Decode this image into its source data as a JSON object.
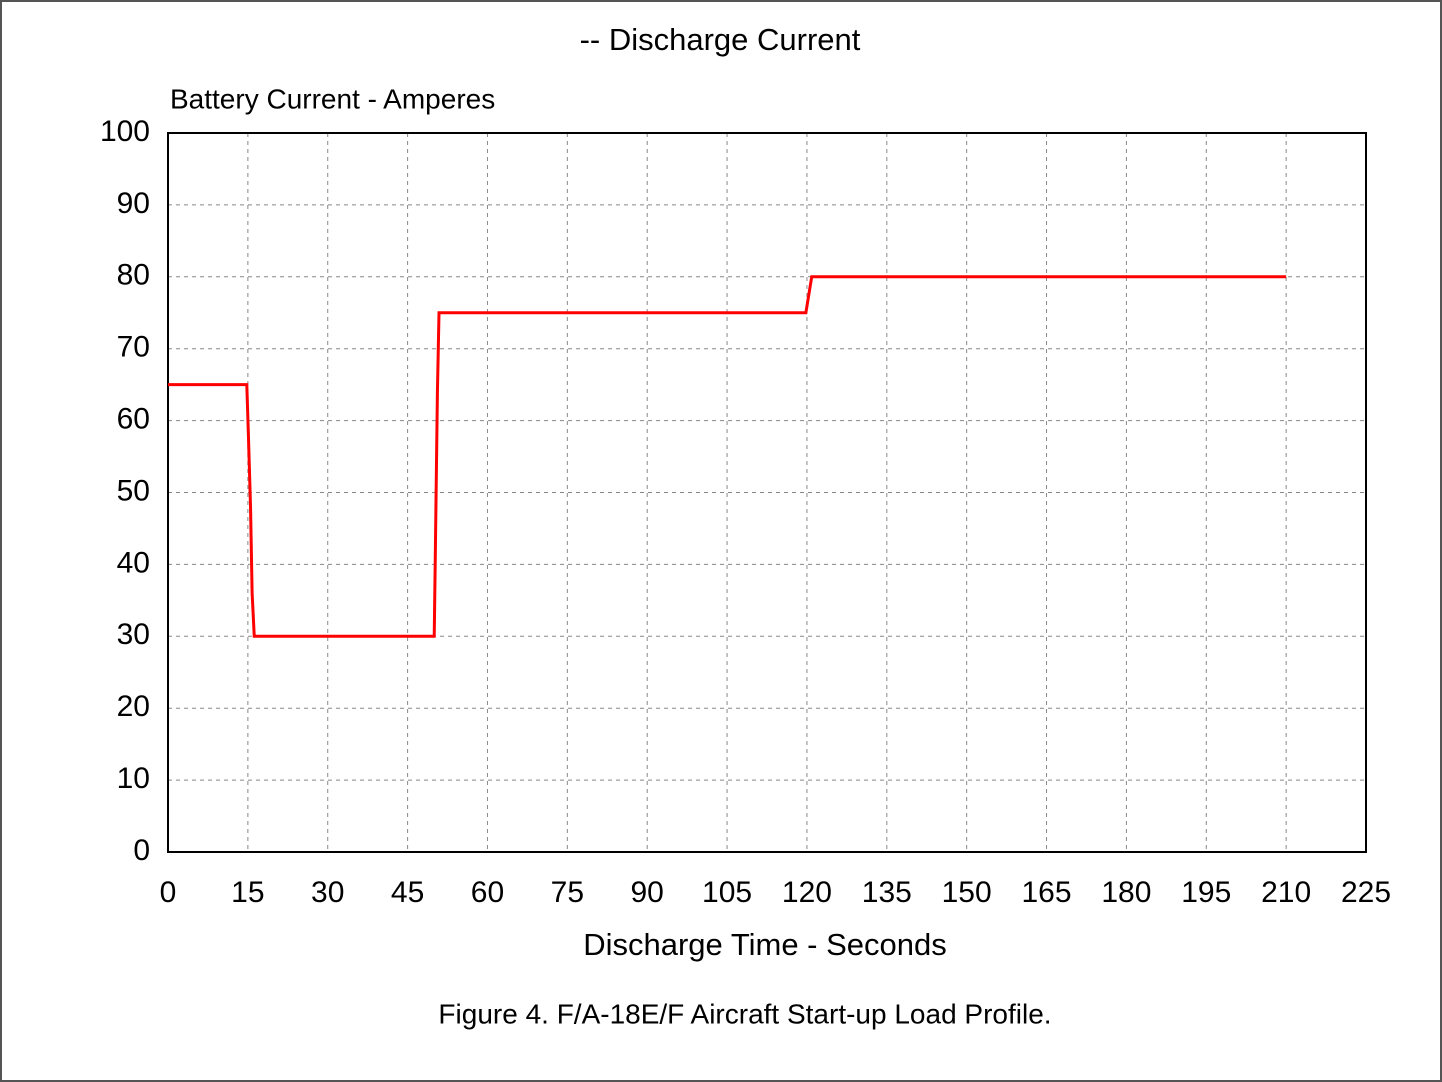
{
  "chart_data": {
    "type": "line",
    "title": "-- Discharge Current",
    "y_label": "Battery Current - Amperes",
    "x_label": "Discharge Time - Seconds",
    "caption": "Figure 4. F/A-18E/F Aircraft Start-up Load Profile.",
    "x": [
      0,
      14.8,
      15.1,
      15.5,
      15.8,
      16.2,
      50,
      50.2,
      50.6,
      50.9,
      119.8,
      120.9,
      210
    ],
    "values": [
      65,
      65,
      58,
      48,
      36,
      30,
      30,
      41,
      64,
      75,
      75,
      80,
      80
    ],
    "color": "#ff0000",
    "xlim": [
      0,
      225
    ],
    "xticks": [
      0,
      15,
      30,
      45,
      60,
      75,
      90,
      105,
      120,
      135,
      150,
      165,
      180,
      195,
      210,
      225
    ],
    "ylim": [
      0,
      100
    ],
    "yticks": [
      0,
      10,
      20,
      30,
      40,
      50,
      60,
      70,
      80,
      90,
      100
    ],
    "grid": true
  }
}
